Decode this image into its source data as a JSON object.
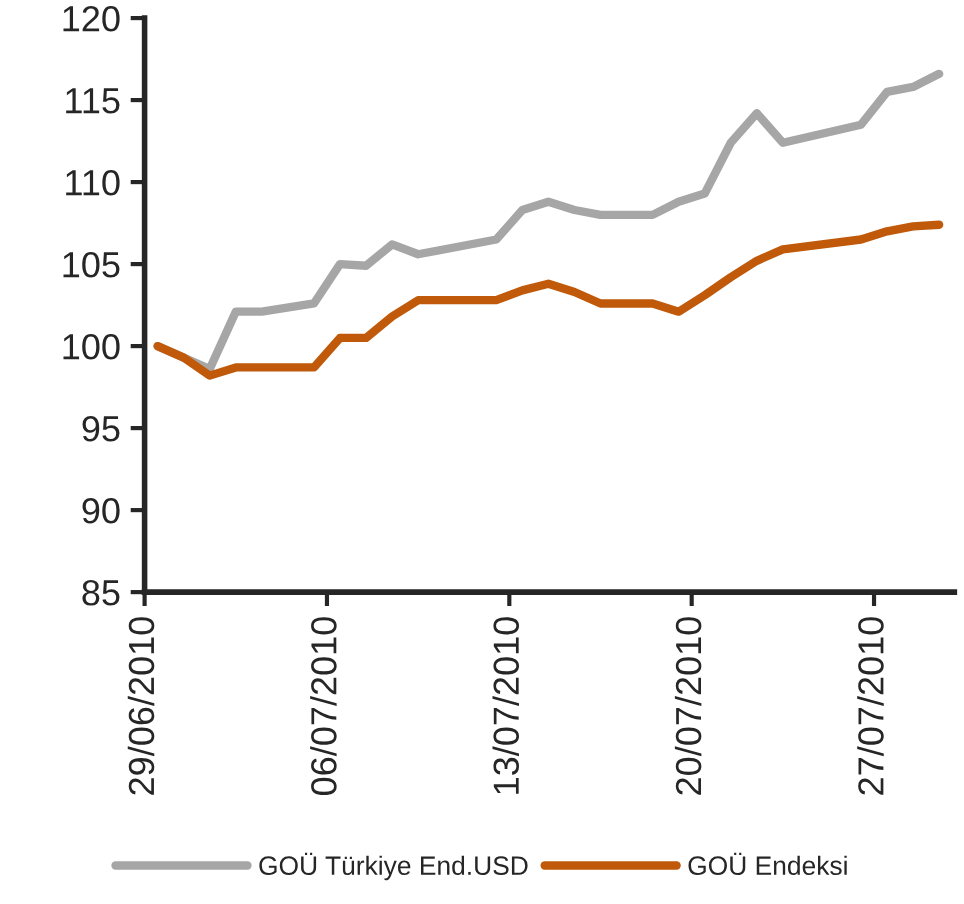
{
  "chart_data": {
    "type": "line",
    "x": [
      "2010-06-29T12:00",
      "2010-06-30T12:00",
      "2010-07-01T12:00",
      "2010-07-02T12:00",
      "2010-07-03T12:00",
      "2010-07-05T12:00",
      "2010-07-06T12:00",
      "2010-07-07T12:00",
      "2010-07-08T12:00",
      "2010-07-09T12:00",
      "2010-07-12T12:00",
      "2010-07-13T12:00",
      "2010-07-14T12:00",
      "2010-07-15T12:00",
      "2010-07-16T12:00",
      "2010-07-18T12:00",
      "2010-07-19T12:00",
      "2010-07-20T12:00",
      "2010-07-21T12:00",
      "2010-07-22T12:00",
      "2010-07-23T12:00",
      "2010-07-26T12:00",
      "2010-07-27T12:00",
      "2010-07-28T12:00",
      "2010-07-29T12:00"
    ],
    "series": [
      {
        "name": "GOÜ Türkiye End.USD",
        "color": "#a6a6a6",
        "values": [
          100,
          99.3,
          98.6,
          102.1,
          102.1,
          102.6,
          105.0,
          104.9,
          106.2,
          105.6,
          106.5,
          108.3,
          108.8,
          108.3,
          108.0,
          108.0,
          108.8,
          109.3,
          112.4,
          114.2,
          112.4,
          113.5,
          115.5,
          115.8,
          116.6
        ]
      },
      {
        "name": "GOÜ Endeksi",
        "color": "#c05a0a",
        "values": [
          100,
          99.3,
          98.2,
          98.7,
          98.7,
          98.7,
          100.5,
          100.5,
          101.8,
          102.8,
          102.8,
          103.4,
          103.8,
          103.3,
          102.6,
          102.6,
          102.1,
          103.1,
          104.2,
          105.2,
          105.9,
          106.5,
          107.0,
          107.3,
          107.4
        ]
      }
    ],
    "xlim": [
      "2010-06-29",
      "2010-07-30T02:00"
    ],
    "xticks": [
      {
        "value": "2010-06-29",
        "label": "29/06/2010"
      },
      {
        "value": "2010-07-06",
        "label": "06/07/2010"
      },
      {
        "value": "2010-07-13",
        "label": "13/07/2010"
      },
      {
        "value": "2010-07-20",
        "label": "20/07/2010"
      },
      {
        "value": "2010-07-27",
        "label": "27/07/2010"
      }
    ],
    "ylim": [
      85,
      120
    ],
    "yticks": [
      85,
      90,
      95,
      100,
      105,
      110,
      115,
      120
    ],
    "legend": "bottom",
    "grid": false,
    "line_style": "solid",
    "marker": "none"
  }
}
